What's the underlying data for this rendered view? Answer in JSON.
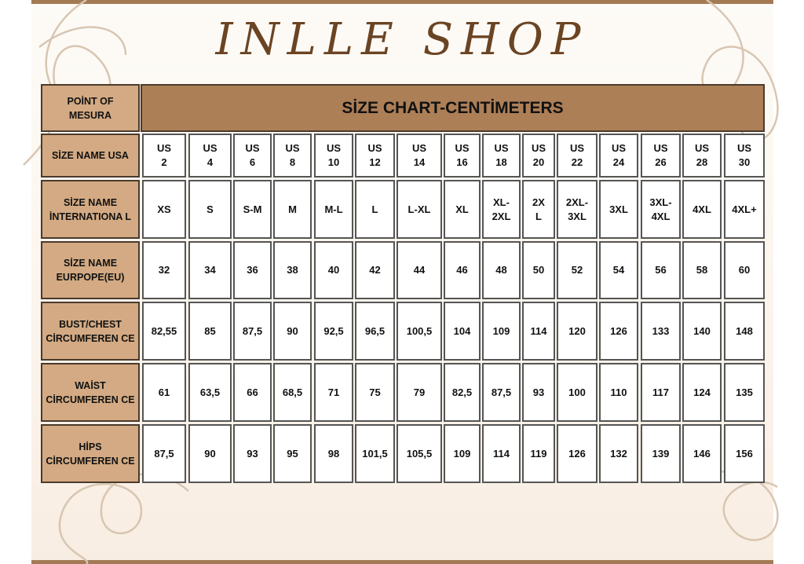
{
  "title": "INLLE SHOP",
  "header": {
    "corner_label": "POİNT OF MESURA",
    "title": "SİZE CHART-CENTİMETERS"
  },
  "colors": {
    "brown_bar": "#a47a55",
    "label_cell": "#d3aa83",
    "header_cell": "#ad7f57",
    "title_text": "#6b4423"
  },
  "rows": [
    {
      "label": "SİZE NAME USA",
      "values": [
        "US\n2",
        "US\n4",
        "US\n6",
        "US\n8",
        "US\n10",
        "US\n12",
        "US\n14",
        "US\n16",
        "US\n18",
        "US\n20",
        "US\n22",
        "US\n24",
        "US\n26",
        "US\n28",
        "US\n30"
      ]
    },
    {
      "label": "SİZE NAME İNTERNATIONA L",
      "values": [
        "XS",
        "S",
        "S-M",
        "M",
        "M-L",
        "L",
        "L-XL",
        "XL",
        "XL-\n2XL",
        "2X\nL",
        "2XL-\n3XL",
        "3XL",
        "3XL-\n4XL",
        "4XL",
        "4XL+"
      ]
    },
    {
      "label": "SİZE NAME EURPOPE(EU)",
      "values": [
        "32",
        "34",
        "36",
        "38",
        "40",
        "42",
        "44",
        "46",
        "48",
        "50",
        "52",
        "54",
        "56",
        "58",
        "60"
      ]
    },
    {
      "label": "BUST/CHEST CİRCUMFEREN CE",
      "values": [
        "82,55",
        "85",
        "87,5",
        "90",
        "92,5",
        "96,5",
        "100,5",
        "104",
        "109",
        "114",
        "120",
        "126",
        "133",
        "140",
        "148"
      ]
    },
    {
      "label": "WAİST CİRCUMFEREN CE",
      "values": [
        "61",
        "63,5",
        "66",
        "68,5",
        "71",
        "75",
        "79",
        "82,5",
        "87,5",
        "93",
        "100",
        "110",
        "117",
        "124",
        "135"
      ]
    },
    {
      "label": "HİPS CİRCUMFEREN CE",
      "values": [
        "87,5",
        "90",
        "93",
        "95",
        "98",
        "101,5",
        "105,5",
        "109",
        "114",
        "119",
        "126",
        "132",
        "139",
        "146",
        "156"
      ]
    }
  ]
}
